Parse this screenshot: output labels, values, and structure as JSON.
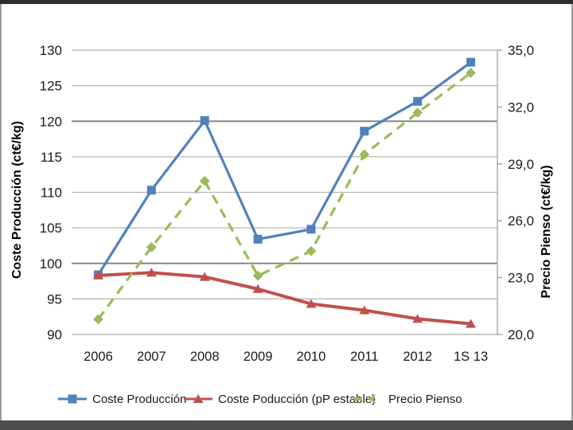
{
  "frame": {
    "top_bar_color": "#2e2e2e",
    "bottom_bar_color": "#4e4e4e",
    "side_border_color": "#9a9a9a",
    "background": "#ffffff"
  },
  "chart_data": {
    "type": "line",
    "title": "",
    "categories": [
      "2006",
      "2007",
      "2008",
      "2009",
      "2010",
      "2011",
      "2012",
      "1S 13"
    ],
    "series": [
      {
        "name": "Coste Producción",
        "axis": "left",
        "color": "#4F81BD",
        "marker": "square",
        "line": "solid",
        "values": [
          98.4,
          110.3,
          120.1,
          103.4,
          104.8,
          118.6,
          122.8,
          128.3
        ]
      },
      {
        "name": "Coste Poducción (pP estable)",
        "axis": "left",
        "color": "#C0504D",
        "marker": "triangle",
        "line": "solid",
        "values": [
          98.3,
          98.7,
          98.1,
          96.4,
          94.3,
          93.4,
          92.2,
          91.5
        ]
      },
      {
        "name": "Precio Pienso",
        "axis": "right",
        "color": "#9BBB59",
        "marker": "diamond",
        "line": "dashed",
        "values": [
          20.8,
          24.6,
          28.1,
          23.1,
          24.4,
          29.5,
          31.7,
          33.8
        ]
      }
    ],
    "axis_left": {
      "label": "Coste Producción (ct€/kg)",
      "min": 90,
      "max": 130,
      "ticks": [
        90,
        95,
        100,
        105,
        110,
        115,
        120,
        125,
        130
      ],
      "emphasized_gridlines": [
        120,
        100
      ]
    },
    "axis_right": {
      "label": "Precio Pienso (ct€/kg)",
      "min": 20,
      "max": 35,
      "ticks": [
        20,
        23,
        26,
        29,
        32,
        35
      ],
      "tick_labels": [
        "20,0",
        "23,0",
        "26,0",
        "29,0",
        "32,0",
        "35,0"
      ]
    },
    "grid": true,
    "legend_position": "bottom",
    "gridline_color": "#b5b5b5",
    "gridline_emphasis_color": "#868686",
    "axis_line_color": "#a6a6a6",
    "text_color": "#1a1a1a"
  }
}
